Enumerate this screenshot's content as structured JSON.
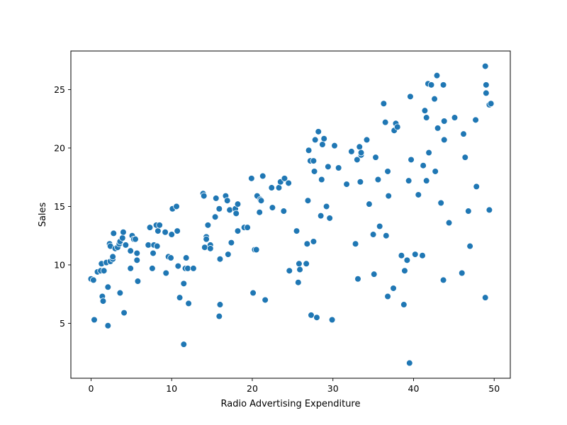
{
  "chart_data": {
    "type": "scatter",
    "xlabel": "Radio Advertising Expenditure",
    "ylabel": "Sales",
    "xlim": [
      -2.5,
      52
    ],
    "ylim": [
      0.3,
      28.3
    ],
    "xticks": [
      0,
      10,
      20,
      30,
      40,
      50
    ],
    "yticks": [
      5,
      10,
      15,
      20,
      25
    ],
    "grid": false,
    "marker_color": "#1f77b4",
    "points": [
      [
        0.0,
        8.8
      ],
      [
        0.3,
        8.7
      ],
      [
        0.4,
        5.3
      ],
      [
        0.8,
        9.4
      ],
      [
        1.2,
        9.5
      ],
      [
        1.3,
        10.1
      ],
      [
        1.4,
        7.3
      ],
      [
        1.5,
        6.9
      ],
      [
        1.6,
        9.5
      ],
      [
        1.9,
        10.2
      ],
      [
        2.1,
        8.1
      ],
      [
        2.1,
        4.8
      ],
      [
        2.3,
        11.8
      ],
      [
        2.4,
        10.3
      ],
      [
        2.4,
        11.6
      ],
      [
        2.7,
        10.5
      ],
      [
        2.7,
        10.7
      ],
      [
        2.8,
        12.7
      ],
      [
        3.0,
        11.4
      ],
      [
        3.3,
        11.5
      ],
      [
        3.5,
        11.8
      ],
      [
        3.6,
        12.0
      ],
      [
        3.6,
        7.6
      ],
      [
        3.9,
        12.3
      ],
      [
        4.0,
        12.8
      ],
      [
        4.1,
        5.9
      ],
      [
        4.3,
        11.7
      ],
      [
        4.9,
        11.2
      ],
      [
        4.9,
        9.7
      ],
      [
        5.1,
        12.5
      ],
      [
        5.3,
        12.2
      ],
      [
        5.5,
        12.2
      ],
      [
        5.7,
        10.4
      ],
      [
        5.7,
        11.0
      ],
      [
        5.8,
        8.6
      ],
      [
        7.3,
        13.2
      ],
      [
        7.1,
        11.7
      ],
      [
        7.6,
        9.7
      ],
      [
        7.7,
        11.0
      ],
      [
        7.8,
        11.7
      ],
      [
        8.1,
        13.4
      ],
      [
        8.2,
        11.6
      ],
      [
        8.3,
        12.9
      ],
      [
        8.5,
        13.4
      ],
      [
        9.2,
        12.8
      ],
      [
        9.3,
        9.3
      ],
      [
        9.6,
        10.7
      ],
      [
        9.9,
        10.6
      ],
      [
        10.0,
        12.6
      ],
      [
        10.1,
        14.8
      ],
      [
        10.6,
        15.0
      ],
      [
        10.7,
        12.9
      ],
      [
        10.8,
        9.9
      ],
      [
        11.0,
        7.2
      ],
      [
        11.5,
        8.4
      ],
      [
        11.5,
        3.2
      ],
      [
        11.7,
        9.7
      ],
      [
        11.8,
        10.6
      ],
      [
        12.0,
        9.7
      ],
      [
        12.1,
        6.7
      ],
      [
        12.7,
        9.7
      ],
      [
        13.9,
        16.1
      ],
      [
        14.0,
        15.9
      ],
      [
        14.1,
        11.5
      ],
      [
        14.3,
        12.4
      ],
      [
        14.3,
        12.2
      ],
      [
        14.5,
        13.4
      ],
      [
        14.8,
        11.7
      ],
      [
        14.8,
        11.4
      ],
      [
        15.4,
        14.1
      ],
      [
        15.5,
        15.7
      ],
      [
        15.9,
        14.8
      ],
      [
        16.0,
        10.5
      ],
      [
        16.0,
        6.6
      ],
      [
        15.9,
        5.6
      ],
      [
        16.7,
        15.9
      ],
      [
        16.9,
        15.5
      ],
      [
        17.0,
        10.9
      ],
      [
        17.2,
        14.7
      ],
      [
        17.4,
        11.9
      ],
      [
        17.9,
        14.8
      ],
      [
        18.0,
        14.4
      ],
      [
        18.2,
        15.2
      ],
      [
        18.2,
        12.9
      ],
      [
        19.0,
        13.2
      ],
      [
        19.4,
        13.2
      ],
      [
        19.9,
        17.4
      ],
      [
        20.1,
        7.6
      ],
      [
        20.3,
        11.3
      ],
      [
        20.5,
        11.3
      ],
      [
        20.6,
        15.9
      ],
      [
        20.9,
        14.5
      ],
      [
        21.0,
        15.6
      ],
      [
        21.1,
        15.5
      ],
      [
        21.3,
        17.6
      ],
      [
        21.6,
        7.0
      ],
      [
        22.4,
        16.6
      ],
      [
        22.5,
        14.9
      ],
      [
        23.3,
        16.6
      ],
      [
        23.5,
        17.1
      ],
      [
        23.9,
        14.6
      ],
      [
        24.0,
        17.4
      ],
      [
        24.5,
        17.0
      ],
      [
        24.6,
        9.5
      ],
      [
        25.5,
        12.9
      ],
      [
        25.7,
        8.5
      ],
      [
        25.8,
        10.1
      ],
      [
        25.9,
        9.6
      ],
      [
        26.7,
        10.1
      ],
      [
        26.8,
        11.8
      ],
      [
        26.9,
        15.5
      ],
      [
        27.0,
        19.8
      ],
      [
        27.2,
        18.9
      ],
      [
        27.3,
        5.7
      ],
      [
        27.6,
        18.9
      ],
      [
        27.6,
        12.0
      ],
      [
        27.7,
        18.0
      ],
      [
        27.8,
        20.7
      ],
      [
        28.0,
        5.5
      ],
      [
        28.2,
        21.4
      ],
      [
        28.5,
        14.2
      ],
      [
        28.6,
        17.3
      ],
      [
        28.7,
        20.3
      ],
      [
        28.9,
        20.8
      ],
      [
        29.2,
        15.0
      ],
      [
        29.4,
        18.4
      ],
      [
        29.6,
        14.0
      ],
      [
        29.9,
        5.3
      ],
      [
        30.2,
        20.2
      ],
      [
        30.7,
        18.3
      ],
      [
        31.7,
        16.9
      ],
      [
        32.3,
        19.7
      ],
      [
        32.8,
        11.8
      ],
      [
        33.0,
        19.0
      ],
      [
        33.1,
        8.8
      ],
      [
        33.3,
        20.1
      ],
      [
        33.4,
        17.1
      ],
      [
        33.5,
        19.4
      ],
      [
        33.5,
        19.6
      ],
      [
        34.2,
        20.7
      ],
      [
        34.5,
        15.2
      ],
      [
        35.0,
        12.6
      ],
      [
        35.1,
        9.2
      ],
      [
        35.3,
        19.2
      ],
      [
        35.6,
        17.3
      ],
      [
        35.8,
        13.3
      ],
      [
        36.3,
        23.8
      ],
      [
        36.5,
        22.2
      ],
      [
        36.6,
        12.5
      ],
      [
        36.8,
        7.3
      ],
      [
        36.8,
        18.0
      ],
      [
        36.9,
        15.9
      ],
      [
        37.5,
        8.0
      ],
      [
        37.6,
        21.5
      ],
      [
        37.8,
        22.1
      ],
      [
        38.0,
        21.8
      ],
      [
        38.5,
        10.8
      ],
      [
        38.8,
        6.6
      ],
      [
        38.9,
        9.5
      ],
      [
        39.2,
        10.4
      ],
      [
        39.4,
        17.2
      ],
      [
        39.6,
        24.4
      ],
      [
        39.5,
        1.6
      ],
      [
        39.7,
        19.0
      ],
      [
        40.2,
        10.9
      ],
      [
        40.6,
        16.0
      ],
      [
        41.1,
        10.8
      ],
      [
        41.2,
        18.5
      ],
      [
        41.4,
        23.2
      ],
      [
        41.6,
        22.6
      ],
      [
        41.6,
        17.2
      ],
      [
        41.8,
        25.5
      ],
      [
        41.9,
        19.6
      ],
      [
        42.2,
        25.4
      ],
      [
        42.6,
        24.2
      ],
      [
        42.7,
        18.0
      ],
      [
        42.9,
        26.2
      ],
      [
        43.0,
        21.7
      ],
      [
        43.4,
        15.3
      ],
      [
        43.7,
        8.7
      ],
      [
        43.7,
        25.4
      ],
      [
        43.8,
        22.3
      ],
      [
        43.8,
        20.7
      ],
      [
        44.4,
        13.6
      ],
      [
        45.1,
        22.6
      ],
      [
        46.0,
        9.3
      ],
      [
        46.2,
        21.2
      ],
      [
        46.4,
        19.2
      ],
      [
        46.8,
        14.6
      ],
      [
        47.0,
        11.6
      ],
      [
        47.7,
        22.4
      ],
      [
        47.8,
        16.7
      ],
      [
        48.9,
        27.0
      ],
      [
        48.9,
        7.2
      ],
      [
        49.0,
        25.4
      ],
      [
        49.0,
        24.7
      ],
      [
        49.4,
        23.7
      ],
      [
        49.6,
        23.8
      ],
      [
        49.4,
        14.7
      ]
    ]
  }
}
